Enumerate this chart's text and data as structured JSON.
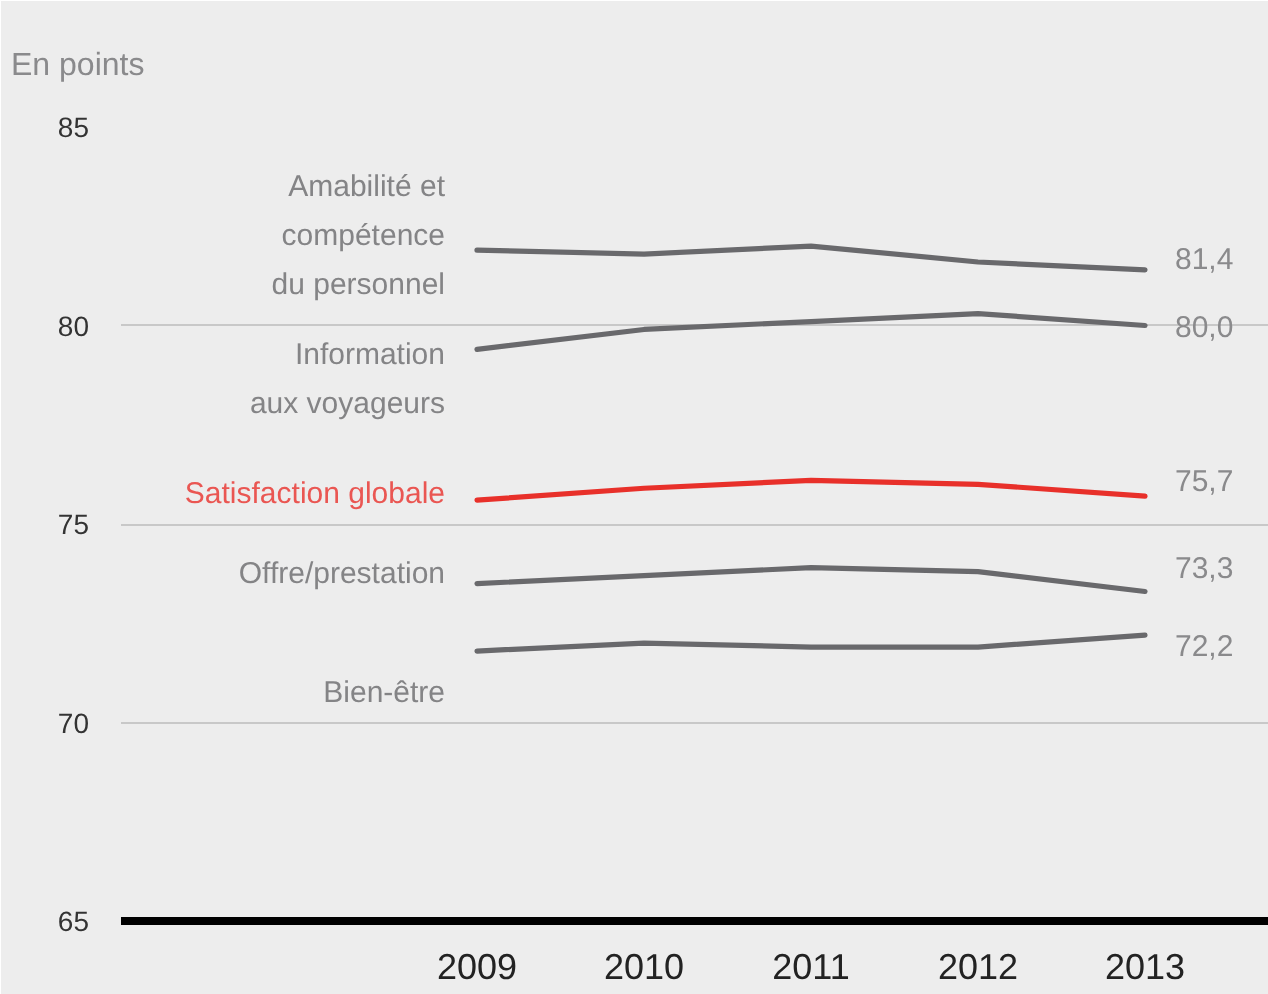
{
  "chart_data": {
    "type": "line",
    "ylabel": "En points",
    "categories": [
      "2009",
      "2010",
      "2011",
      "2012",
      "2013"
    ],
    "ylim": [
      65,
      85
    ],
    "yticks": [
      65,
      70,
      75,
      80,
      85
    ],
    "grid": "y",
    "line_style": "solid",
    "series": [
      {
        "name": "Amabilité et\ncompétence\ndu personnel",
        "color": "#69696c",
        "values": [
          81.9,
          81.8,
          82.0,
          81.6,
          81.4
        ],
        "value_labels": [
          null,
          null,
          null,
          null,
          "81,4"
        ]
      },
      {
        "name": "Information\naux voyageurs",
        "color": "#69696c",
        "values": [
          79.4,
          79.9,
          80.1,
          80.3,
          80.0
        ],
        "value_labels": [
          null,
          null,
          null,
          null,
          "80,0"
        ]
      },
      {
        "name": "Satisfaction globale",
        "color": "#e8302a",
        "values": [
          75.6,
          75.9,
          76.1,
          76.0,
          75.7
        ],
        "value_labels": [
          null,
          null,
          null,
          null,
          "75,7"
        ]
      },
      {
        "name": "Offre/prestation",
        "color": "#69696c",
        "values": [
          73.5,
          73.7,
          73.9,
          73.8,
          73.3
        ],
        "value_labels": [
          null,
          null,
          null,
          null,
          "73,3"
        ]
      },
      {
        "name": "Bien-être",
        "color": "#69696c",
        "values": [
          71.8,
          72.0,
          71.9,
          71.9,
          72.2
        ],
        "value_labels": [
          null,
          null,
          null,
          null,
          "72,2"
        ]
      }
    ]
  }
}
